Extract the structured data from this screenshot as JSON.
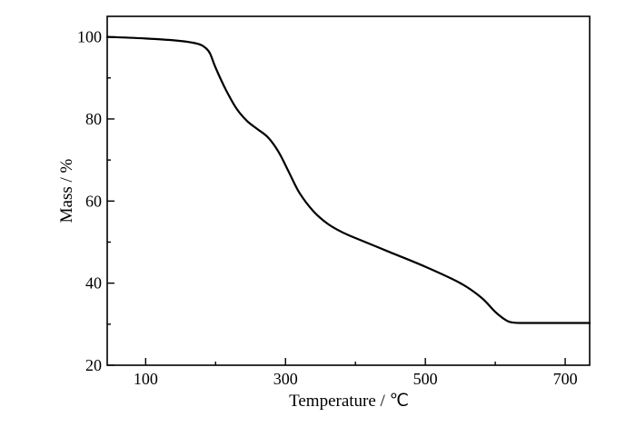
{
  "chart_data": {
    "type": "line",
    "title": "",
    "xlabel": "Temperature / ℃",
    "ylabel": "Mass / %",
    "xlim": [
      45,
      735
    ],
    "ylim": [
      20,
      105
    ],
    "xticks_major": [
      100,
      300,
      500,
      700
    ],
    "xticks_minor": [
      200,
      400,
      600
    ],
    "yticks_major": [
      20,
      40,
      60,
      80,
      100
    ],
    "yticks_minor": [
      30,
      50,
      70,
      90
    ],
    "grid": false,
    "legend": "none",
    "line_color": "#000000",
    "series": [
      {
        "x": [
          45,
          100,
          150,
          175,
          185,
          192,
          200,
          215,
          230,
          245,
          260,
          275,
          290,
          305,
          320,
          340,
          360,
          380,
          400,
          450,
          500,
          550,
          580,
          600,
          615,
          625,
          640,
          700,
          735
        ],
        "y": [
          100.0,
          99.6,
          99.0,
          98.3,
          97.4,
          96.0,
          92.5,
          87.0,
          82.5,
          79.5,
          77.5,
          75.5,
          72.0,
          67.0,
          62.0,
          57.5,
          54.5,
          52.5,
          51.0,
          47.5,
          44.0,
          40.0,
          36.5,
          33.0,
          31.0,
          30.4,
          30.3,
          30.3,
          30.3
        ]
      }
    ]
  }
}
